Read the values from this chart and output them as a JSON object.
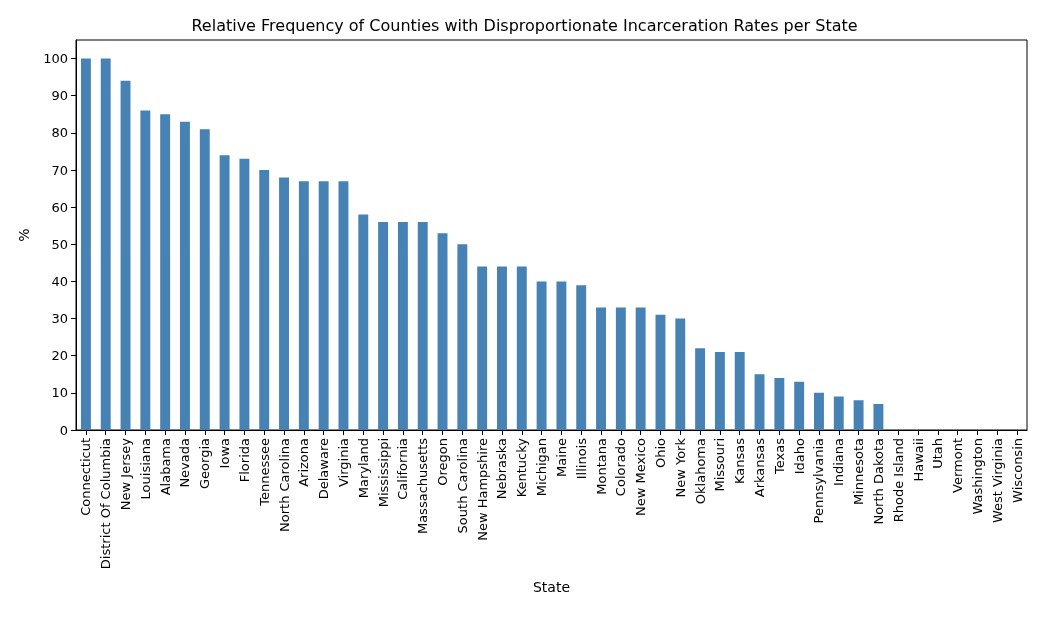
{
  "chart_data": {
    "type": "bar",
    "title": "Relative Frequency of Counties with Disproportionate Incarceration Rates per State",
    "xlabel": "State",
    "ylabel": "%",
    "categories": [
      "Connecticut",
      "District Of Columbia",
      "New Jersey",
      "Louisiana",
      "Alabama",
      "Nevada",
      "Georgia",
      "Iowa",
      "Florida",
      "Tennessee",
      "North Carolina",
      "Arizona",
      "Delaware",
      "Virginia",
      "Maryland",
      "Mississippi",
      "California",
      "Massachusetts",
      "Oregon",
      "South Carolina",
      "New Hampshire",
      "Nebraska",
      "Kentucky",
      "Michigan",
      "Maine",
      "Illinois",
      "Montana",
      "Colorado",
      "New Mexico",
      "Ohio",
      "New York",
      "Oklahoma",
      "Missouri",
      "Kansas",
      "Arkansas",
      "Texas",
      "Idaho",
      "Pennsylvania",
      "Indiana",
      "Minnesota",
      "North Dakota",
      "Rhode Island",
      "Hawaii",
      "Utah",
      "Vermont",
      "Washington",
      "West Virginia",
      "Wisconsin"
    ],
    "values": [
      100,
      100,
      94,
      86,
      85,
      83,
      81,
      74,
      73,
      70,
      68,
      67,
      67,
      67,
      58,
      56,
      56,
      56,
      53,
      50,
      44,
      44,
      44,
      40,
      40,
      39,
      33,
      33,
      33,
      31,
      30,
      22,
      21,
      21,
      15,
      14,
      13,
      10,
      9,
      8,
      7,
      0,
      0,
      0,
      0,
      0,
      0,
      0
    ],
    "color": "#4682b4",
    "ylim": [
      0,
      105
    ],
    "yticks": [
      0,
      10,
      20,
      30,
      40,
      50,
      60,
      70,
      80,
      90,
      100
    ],
    "grid": false
  }
}
